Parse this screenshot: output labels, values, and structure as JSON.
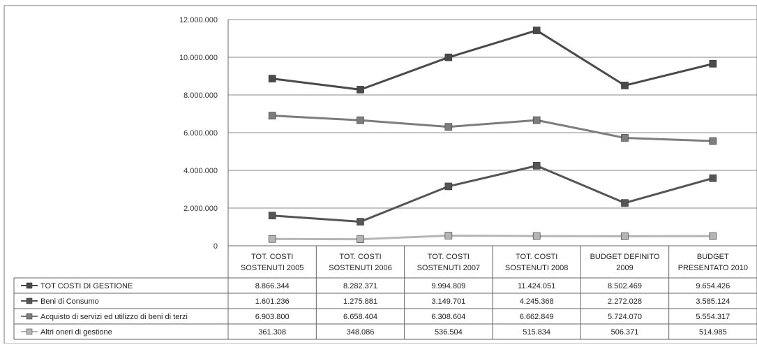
{
  "chart_data": {
    "type": "line",
    "title": "",
    "xlabel": "",
    "ylabel": "",
    "ylim": [
      0,
      12000000
    ],
    "yticks": [
      {
        "value": 0,
        "label": "0"
      },
      {
        "value": 2000000,
        "label": "2.000.000"
      },
      {
        "value": 4000000,
        "label": "4.000.000"
      },
      {
        "value": 6000000,
        "label": "6.000.000"
      },
      {
        "value": 8000000,
        "label": "8.000.000"
      },
      {
        "value": 10000000,
        "label": "10.000.000"
      },
      {
        "value": 12000000,
        "label": "12.000.000"
      }
    ],
    "grid": true,
    "legend": "data-table-left",
    "categories": [
      [
        "TOT. COSTI",
        "SOSTENUTI 2005"
      ],
      [
        "TOT. COSTI",
        "SOSTENUTI 2006"
      ],
      [
        "TOT. COSTI",
        "SOSTENUTI 2007"
      ],
      [
        "TOT. COSTI",
        "SOSTENUTI 2008"
      ],
      [
        "BUDGET DEFINITO",
        "2009"
      ],
      [
        "BUDGET",
        "PRESENTATO 2010"
      ]
    ],
    "series": [
      {
        "name": "TOT COSTI DI GESTIONE",
        "color": "#4a4a4a",
        "values": [
          8866344,
          8282371,
          9994809,
          11424051,
          8502469,
          9654426
        ],
        "labels": [
          "8.866.344",
          "8.282.371",
          "9.994.809",
          "11.424.051",
          "8.502.469",
          "9.654.426"
        ]
      },
      {
        "name": "Beni di Consumo",
        "color": "#555555",
        "values": [
          1601236,
          1275881,
          3149701,
          4245368,
          2272028,
          3585124
        ],
        "labels": [
          "1.601.236",
          "1.275.881",
          "3.149.701",
          "4.245.368",
          "2.272.028",
          "3.585.124"
        ]
      },
      {
        "name": "Acquisto di servizi ed utilizzo di beni di terzi",
        "color": "#7d7d7d",
        "values": [
          6903800,
          6658404,
          6308604,
          6662849,
          5724070,
          5554317
        ],
        "labels": [
          "6.903.800",
          "6.658.404",
          "6.308.604",
          "6.662.849",
          "5.724.070",
          "5.554.317"
        ]
      },
      {
        "name": "Altri oneri di gestione",
        "color": "#b5b5b5",
        "values": [
          361308,
          348086,
          536504,
          515834,
          506371,
          514985
        ],
        "labels": [
          "361.308",
          "348.086",
          "536.504",
          "515.834",
          "506.371",
          "514.985"
        ]
      }
    ]
  }
}
